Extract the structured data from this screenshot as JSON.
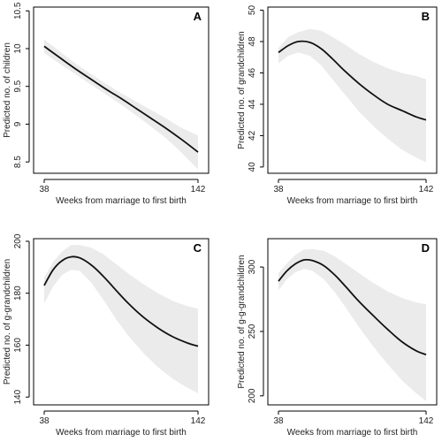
{
  "chart_data": [
    {
      "type": "line",
      "panel": "A",
      "xlabel": "Weeks from marriage to first birth",
      "ylabel": "Predicted no. of children",
      "xlim": [
        38,
        142
      ],
      "ylim": [
        8.35,
        10.55
      ],
      "xticks": [
        38,
        142
      ],
      "yticks": [
        8.5,
        9,
        9.5,
        10,
        10.5
      ],
      "ytick_labels": [
        "8.5",
        "9",
        "9.5",
        "10",
        "10.5"
      ],
      "grid": false,
      "x": [
        38,
        50,
        60,
        70,
        80,
        90,
        100,
        110,
        120,
        130,
        142
      ],
      "y": [
        10.03,
        9.86,
        9.72,
        9.59,
        9.46,
        9.34,
        9.21,
        9.08,
        8.95,
        8.81,
        8.63
      ],
      "upper": [
        10.12,
        9.94,
        9.79,
        9.66,
        9.53,
        9.41,
        9.3,
        9.19,
        9.08,
        8.96,
        8.85
      ],
      "lower": [
        9.94,
        9.78,
        9.65,
        9.52,
        9.39,
        9.26,
        9.12,
        8.97,
        8.82,
        8.64,
        8.4
      ]
    },
    {
      "type": "line",
      "panel": "B",
      "xlabel": "Weeks from marriage to first birth",
      "ylabel": "Predicted no. of grandchildren",
      "xlim": [
        38,
        142
      ],
      "ylim": [
        39.6,
        50.2
      ],
      "xticks": [
        38,
        142
      ],
      "yticks": [
        40,
        42,
        44,
        46,
        48,
        50
      ],
      "ytick_labels": [
        "40",
        "42",
        "44",
        "46",
        "48",
        "50"
      ],
      "grid": false,
      "x": [
        38,
        45,
        52,
        60,
        68,
        76,
        85,
        95,
        105,
        115,
        125,
        135,
        142
      ],
      "y": [
        47.3,
        47.75,
        48.0,
        47.95,
        47.55,
        46.9,
        46.1,
        45.3,
        44.6,
        44.0,
        43.6,
        43.2,
        43.0
      ],
      "upper": [
        47.6,
        48.3,
        48.6,
        48.8,
        48.7,
        48.3,
        47.8,
        47.2,
        46.7,
        46.3,
        46.0,
        45.8,
        45.6
      ],
      "lower": [
        46.6,
        47.1,
        47.3,
        47.1,
        46.5,
        45.6,
        44.6,
        43.5,
        42.6,
        41.8,
        41.1,
        40.6,
        40.3
      ]
    },
    {
      "type": "line",
      "panel": "C",
      "xlabel": "Weeks from marriage to first birth",
      "ylabel": "Predicted no. of g-grandchildren",
      "xlim": [
        38,
        142
      ],
      "ylim": [
        137,
        201
      ],
      "xticks": [
        38,
        142
      ],
      "yticks": [
        140,
        160,
        180,
        200
      ],
      "ytick_labels": [
        "140",
        "160",
        "180",
        "200"
      ],
      "grid": false,
      "x": [
        38,
        44,
        50,
        56,
        62,
        70,
        78,
        86,
        95,
        105,
        115,
        125,
        135,
        142
      ],
      "y": [
        183,
        189,
        192.5,
        194,
        193.6,
        190.8,
        186.5,
        181.5,
        176,
        170.8,
        166.6,
        163.2,
        160.8,
        159.6
      ],
      "upper": [
        186,
        192,
        196,
        198.5,
        198.6,
        197.5,
        195,
        191.5,
        187.5,
        183.5,
        180,
        177,
        175,
        174
      ],
      "lower": [
        176,
        182.5,
        187,
        189,
        188.6,
        184,
        177.5,
        170.5,
        163.5,
        157,
        151.5,
        147,
        143.5,
        141.5
      ]
    },
    {
      "type": "line",
      "panel": "D",
      "xlabel": "Weeks from marriage to first birth",
      "ylabel": "Predicted no. of g-g-grandchildren",
      "xlim": [
        38,
        142
      ],
      "ylim": [
        193,
        322
      ],
      "xticks": [
        38,
        142
      ],
      "yticks": [
        200,
        250,
        300
      ],
      "ytick_labels": [
        "200",
        "250",
        "300"
      ],
      "grid": false,
      "x": [
        38,
        44,
        50,
        56,
        62,
        70,
        78,
        86,
        95,
        105,
        115,
        125,
        135,
        142
      ],
      "y": [
        289,
        297,
        302.5,
        305.5,
        305,
        301,
        293.5,
        284,
        273,
        262,
        251.5,
        242,
        235,
        232
      ],
      "upper": [
        295,
        303,
        309.5,
        313.5,
        314,
        312.5,
        308,
        302,
        295,
        287.5,
        281,
        276,
        272.5,
        271
      ],
      "lower": [
        282,
        290.5,
        296,
        298.5,
        297,
        290.5,
        280,
        267.5,
        253,
        238,
        224.5,
        212,
        202,
        196
      ]
    }
  ]
}
